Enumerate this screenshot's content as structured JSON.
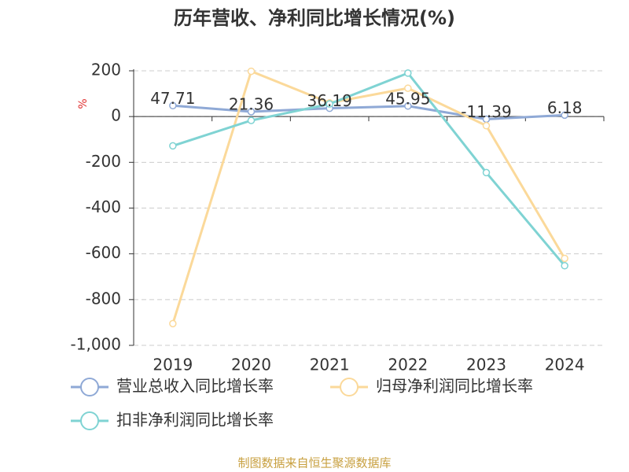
{
  "chart_data": {
    "type": "line",
    "title": "历年营收、净利同比增长情况(%)",
    "y_label": "%",
    "source": "制图数据来自恒生聚源数据库",
    "categories": [
      "2019",
      "2020",
      "2021",
      "2022",
      "2023",
      "2024"
    ],
    "series": [
      {
        "name": "营业总收入同比增长率",
        "color": "#8fa9d6",
        "values": [
          47.71,
          21.36,
          36.19,
          45.95,
          -11.39,
          6.18
        ],
        "show_labels": true
      },
      {
        "name": "归母净利润同比增长率",
        "color": "#fbd99a",
        "values": [
          -905,
          198,
          60,
          124,
          -40,
          -620
        ]
      },
      {
        "name": "扣非净利润同比增长率",
        "color": "#7fd3d3",
        "values": [
          -128,
          -17,
          55,
          190,
          -245,
          -652
        ]
      }
    ],
    "ylim": [
      -1000,
      200
    ],
    "yticks": [
      200,
      0,
      -200,
      -400,
      -600,
      -800,
      {
        "value": -1000,
        "label": "-1,000"
      }
    ],
    "grid": true
  }
}
